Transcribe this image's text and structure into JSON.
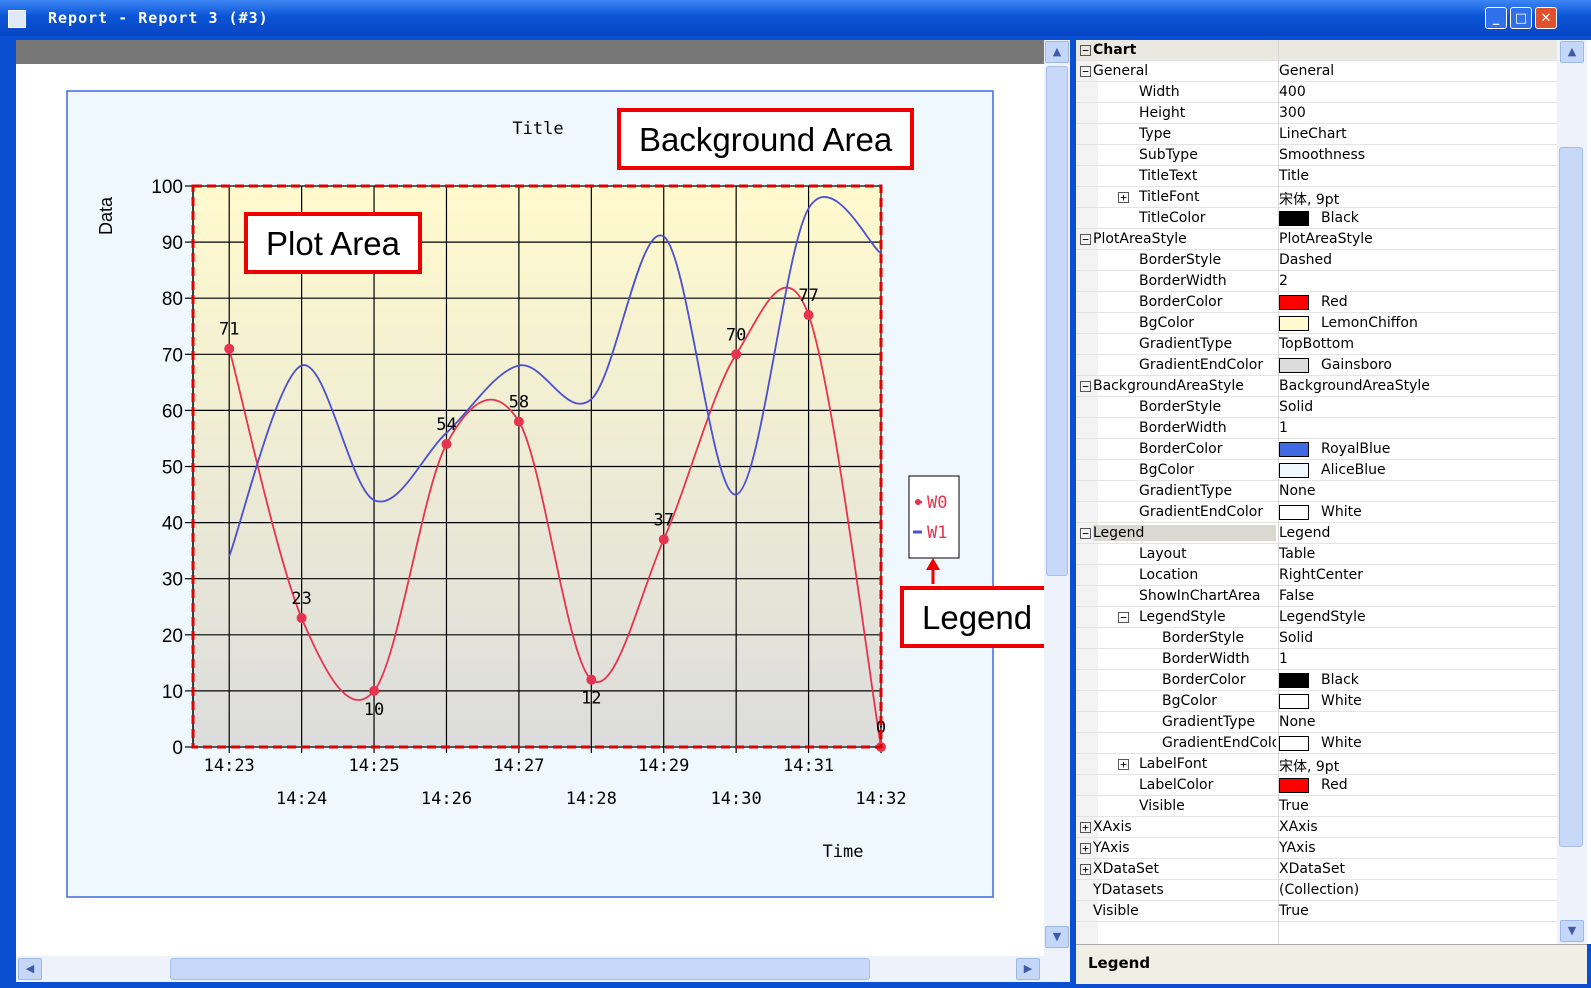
{
  "window": {
    "title": "Report - Report 3 (#3)",
    "buttons": [
      "minimize",
      "maximize",
      "close"
    ]
  },
  "chart_data": {
    "type": "line",
    "title": "Title",
    "xlabel": "Time",
    "ylabel": "Data",
    "ylim": [
      0,
      100
    ],
    "yticks": [
      0,
      10,
      20,
      30,
      40,
      50,
      60,
      70,
      80,
      90,
      100
    ],
    "categories": [
      "14:23",
      "14:24",
      "14:25",
      "14:26",
      "14:27",
      "14:28",
      "14:29",
      "14:30",
      "14:31",
      "14:32"
    ],
    "grid": true,
    "legend_placement": "right-center",
    "series": [
      {
        "name": "W0",
        "color": "#e8334f",
        "values": [
          71,
          23,
          10,
          54,
          58,
          12,
          37,
          70,
          77,
          0
        ],
        "labels": [
          "71",
          "23",
          "10",
          "54",
          "58",
          "12",
          "37",
          "70",
          "77",
          "0"
        ],
        "markers": true
      },
      {
        "name": "W1",
        "color": "#4a50d0",
        "values": [
          34,
          68,
          44,
          56,
          68,
          62,
          91,
          45,
          96,
          88
        ],
        "markers": false
      }
    ],
    "colors": {
      "plot_border": "#e00000",
      "plot_bg_top": "#fffacd",
      "plot_bg_bottom": "#dcdcdc",
      "bg_border": "#4169e1",
      "bg_fill": "#f0f8ff"
    }
  },
  "callouts": {
    "background_area": "Background Area",
    "plot_area": "Plot Area",
    "legend": "Legend"
  },
  "properties": [
    {
      "indent": 0,
      "expander": "minus",
      "name": "Chart",
      "value": "",
      "header": true
    },
    {
      "indent": 0,
      "expander": "minus",
      "name": "General",
      "value": "General"
    },
    {
      "indent": 1,
      "name": "Width",
      "value": "400"
    },
    {
      "indent": 1,
      "name": "Height",
      "value": "300"
    },
    {
      "indent": 1,
      "name": "Type",
      "value": "LineChart"
    },
    {
      "indent": 1,
      "name": "SubType",
      "value": "Smoothness"
    },
    {
      "indent": 1,
      "name": "TitleText",
      "value": "Title"
    },
    {
      "indent": 1,
      "expander": "plus",
      "name": "TitleFont",
      "value": "宋体, 9pt"
    },
    {
      "indent": 1,
      "name": "TitleColor",
      "value": "Black",
      "swatch": "#000000"
    },
    {
      "indent": 0,
      "expander": "minus",
      "name": "PlotAreaStyle",
      "value": "PlotAreaStyle"
    },
    {
      "indent": 1,
      "name": "BorderStyle",
      "value": "Dashed"
    },
    {
      "indent": 1,
      "name": "BorderWidth",
      "value": "2"
    },
    {
      "indent": 1,
      "name": "BorderColor",
      "value": "Red",
      "swatch": "#ff0000"
    },
    {
      "indent": 1,
      "name": "BgColor",
      "value": "LemonChiffon",
      "swatch": "#fffacd"
    },
    {
      "indent": 1,
      "name": "GradientType",
      "value": "TopBottom"
    },
    {
      "indent": 1,
      "name": "GradientEndColor",
      "value": "Gainsboro",
      "swatch": "#dcdcdc"
    },
    {
      "indent": 0,
      "expander": "minus",
      "name": "BackgroundAreaStyle",
      "value": "BackgroundAreaStyle"
    },
    {
      "indent": 1,
      "name": "BorderStyle",
      "value": "Solid"
    },
    {
      "indent": 1,
      "name": "BorderWidth",
      "value": "1"
    },
    {
      "indent": 1,
      "name": "BorderColor",
      "value": "RoyalBlue",
      "swatch": "#4169e1"
    },
    {
      "indent": 1,
      "name": "BgColor",
      "value": "AliceBlue",
      "swatch": "#f0f8ff"
    },
    {
      "indent": 1,
      "name": "GradientType",
      "value": "None"
    },
    {
      "indent": 1,
      "name": "GradientEndColor",
      "value": "White",
      "swatch": "#ffffff"
    },
    {
      "indent": 0,
      "expander": "minus",
      "name": "Legend",
      "value": "Legend",
      "selected": true
    },
    {
      "indent": 1,
      "name": "Layout",
      "value": "Table"
    },
    {
      "indent": 1,
      "name": "Location",
      "value": "RightCenter"
    },
    {
      "indent": 1,
      "name": "ShowInChartArea",
      "value": "False"
    },
    {
      "indent": 1,
      "expander": "minus",
      "name": "LegendStyle",
      "value": "LegendStyle"
    },
    {
      "indent": 2,
      "name": "BorderStyle",
      "value": "Solid"
    },
    {
      "indent": 2,
      "name": "BorderWidth",
      "value": "1"
    },
    {
      "indent": 2,
      "name": "BorderColor",
      "value": "Black",
      "swatch": "#000000"
    },
    {
      "indent": 2,
      "name": "BgColor",
      "value": "White",
      "swatch": "#ffffff"
    },
    {
      "indent": 2,
      "name": "GradientType",
      "value": "None"
    },
    {
      "indent": 2,
      "name": "GradientEndColor",
      "value": "White",
      "swatch": "#ffffff"
    },
    {
      "indent": 1,
      "expander": "plus",
      "name": "LabelFont",
      "value": "宋体, 9pt"
    },
    {
      "indent": 1,
      "name": "LabelColor",
      "value": "Red",
      "swatch": "#ff0000"
    },
    {
      "indent": 1,
      "name": "Visible",
      "value": "True"
    },
    {
      "indent": 0,
      "expander": "plus",
      "name": "XAxis",
      "value": "XAxis"
    },
    {
      "indent": 0,
      "expander": "plus",
      "name": "YAxis",
      "value": "YAxis"
    },
    {
      "indent": 0,
      "expander": "plus",
      "name": "XDataSet",
      "value": "XDataSet"
    },
    {
      "indent": 0,
      "name": "YDatasets",
      "value": "(Collection)"
    },
    {
      "indent": 0,
      "name": "Visible",
      "value": "True"
    }
  ],
  "description": {
    "title": "Legend"
  }
}
